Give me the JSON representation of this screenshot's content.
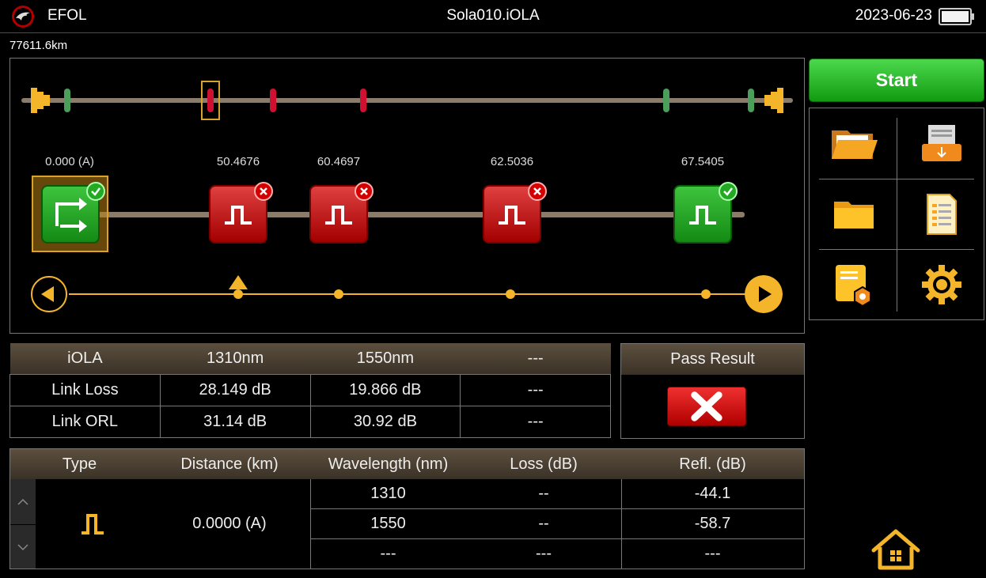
{
  "header": {
    "app_name": "EFOL",
    "file_title": "Sola010.iOLA",
    "date": "2023-06-23",
    "logo_icon": "eagle-logo-icon",
    "battery_icon": "battery-icon"
  },
  "distance_readout": "77611.6km",
  "events": [
    {
      "position": "0.000 (A)",
      "status": "pass",
      "kind": "launch",
      "selected": true
    },
    {
      "position": "50.4676",
      "status": "fail",
      "kind": "reflective"
    },
    {
      "position": "60.4697",
      "status": "fail",
      "kind": "reflective"
    },
    {
      "position": "62.5036",
      "status": "fail",
      "kind": "reflective"
    },
    {
      "position": "67.5405",
      "status": "pass",
      "kind": "reflective"
    }
  ],
  "sidebar": {
    "start_label": "Start",
    "tools": [
      "open-folder-icon",
      "save-download-icon",
      "folder-icon",
      "report-document-icon",
      "file-settings-icon",
      "gear-icon"
    ]
  },
  "summary": {
    "headers": [
      "iOLA",
      "1310nm",
      "1550nm",
      "---"
    ],
    "rows": [
      [
        "Link Loss",
        "28.149 dB",
        "19.866 dB",
        "---"
      ],
      [
        "Link ORL",
        "31.14 dB",
        "30.92 dB",
        "---"
      ]
    ]
  },
  "pass_result": {
    "title": "Pass Result",
    "result": "fail"
  },
  "detail": {
    "headers": [
      "Type",
      "Distance (km)",
      "Wavelength (nm)",
      "Loss (dB)",
      "Refl.  (dB)"
    ],
    "type_icon": "reflective-event-icon",
    "distance": "0.0000 (A)",
    "rows": [
      [
        "1310",
        "--",
        "-44.1"
      ],
      [
        "1550",
        "--",
        "-58.7"
      ],
      [
        "---",
        "---",
        "---"
      ]
    ]
  },
  "colors": {
    "accent": "#f5b52a",
    "pass": "#22aa22",
    "fail": "#d40000",
    "header_bg": "#4a3f32"
  }
}
